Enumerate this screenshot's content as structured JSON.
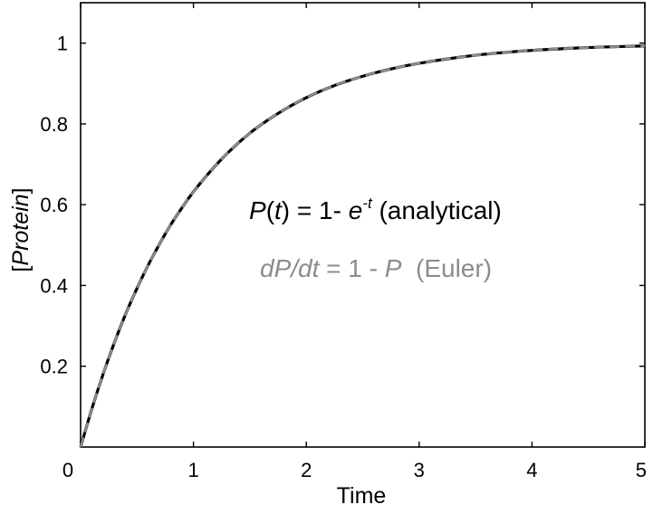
{
  "chart_data": {
    "type": "line",
    "xlabel": "Time",
    "ylabel": "Protein",
    "ylabel_open": "[",
    "ylabel_close": "]",
    "xlim": [
      0,
      5
    ],
    "ylim": [
      0,
      1.1
    ],
    "xticks": [
      0,
      1,
      2,
      3,
      4,
      5
    ],
    "yticks": [
      0.2,
      0.4,
      0.6,
      0.8,
      1
    ],
    "xtick_labels": [
      "0",
      "1",
      "2",
      "3",
      "4",
      "5"
    ],
    "ytick_labels": [
      "0.2",
      "0.4",
      "0.6",
      "0.8",
      "1"
    ],
    "grid": false,
    "series": [
      {
        "style": "solid",
        "color": "#000000",
        "x": [
          0,
          0.1,
          0.2,
          0.3,
          0.4,
          0.5,
          0.6,
          0.7,
          0.8,
          0.9,
          1.0,
          1.25,
          1.5,
          1.75,
          2.0,
          2.25,
          2.5,
          2.75,
          3.0,
          3.5,
          4.0,
          4.5,
          5.0
        ],
        "y": [
          0,
          0.095,
          0.181,
          0.259,
          0.33,
          0.393,
          0.451,
          0.503,
          0.551,
          0.593,
          0.632,
          0.713,
          0.777,
          0.826,
          0.865,
          0.895,
          0.918,
          0.936,
          0.95,
          0.97,
          0.982,
          0.989,
          0.993
        ]
      },
      {
        "style": "dashed",
        "color": "#8c8c8c",
        "x": [
          0,
          0.1,
          0.2,
          0.3,
          0.4,
          0.5,
          0.6,
          0.7,
          0.8,
          0.9,
          1.0,
          1.25,
          1.5,
          1.75,
          2.0,
          2.25,
          2.5,
          2.75,
          3.0,
          3.5,
          4.0,
          4.5,
          5.0
        ],
        "y": [
          0,
          0.095,
          0.181,
          0.259,
          0.33,
          0.393,
          0.451,
          0.503,
          0.551,
          0.593,
          0.632,
          0.713,
          0.777,
          0.826,
          0.865,
          0.895,
          0.918,
          0.936,
          0.95,
          0.97,
          0.982,
          0.989,
          0.993
        ]
      }
    ],
    "annotations": {
      "analytical": {
        "color": "#000000",
        "p": "P",
        "t_open": "(",
        "t": "t",
        "t_close": ")",
        "eq": " = 1- ",
        "e": "e",
        "exponent": "-t",
        "label": " (analytical)"
      },
      "euler": {
        "color": "#8c8c8c",
        "lhs": "dP/dt",
        "eq": " = 1 - ",
        "p": "P",
        "label": "  (Euler)"
      }
    }
  }
}
